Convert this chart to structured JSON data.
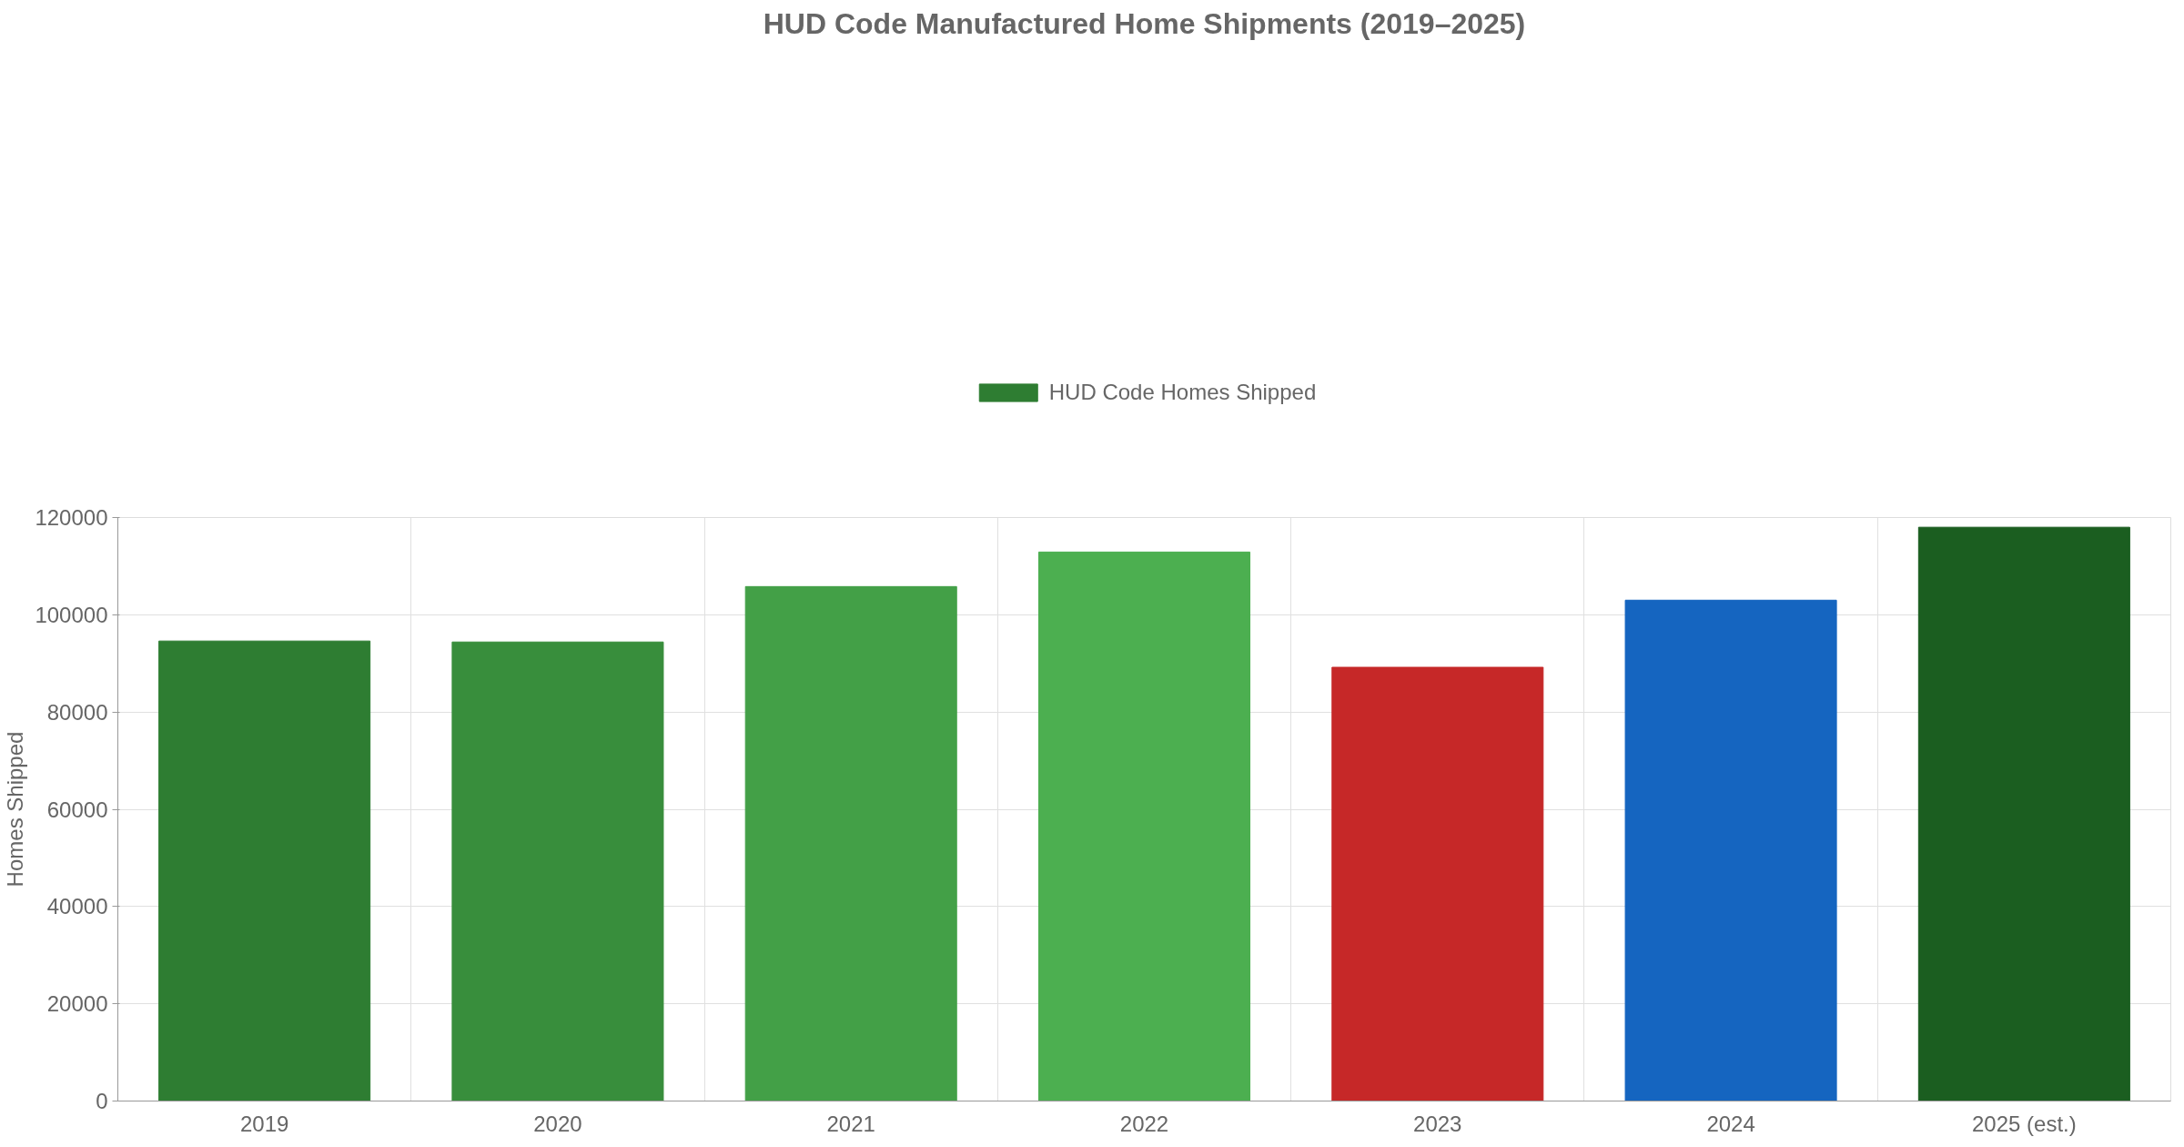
{
  "chart_data": {
    "type": "bar",
    "title": "HUD Code Manufactured Home Shipments (2019–2025)",
    "ylabel": "Homes Shipped",
    "categories": [
      "2019",
      "2020",
      "2021",
      "2022",
      "2023",
      "2024",
      "2025 (est.)"
    ],
    "series": [
      {
        "name": "HUD Code Homes Shipped",
        "color": "#2e7d32",
        "colors": [
          "#2e7d32",
          "#388e3c",
          "#43a047",
          "#4caf50",
          "#c62828",
          "#1565c0",
          "#1b5e20"
        ],
        "values": [
          94600,
          94400,
          105800,
          112900,
          89200,
          103000,
          118000
        ]
      }
    ],
    "ylim": [
      0,
      120000
    ],
    "yticks": [
      0,
      20000,
      40000,
      60000,
      80000,
      100000,
      120000
    ],
    "grid": true,
    "legend": "top"
  }
}
